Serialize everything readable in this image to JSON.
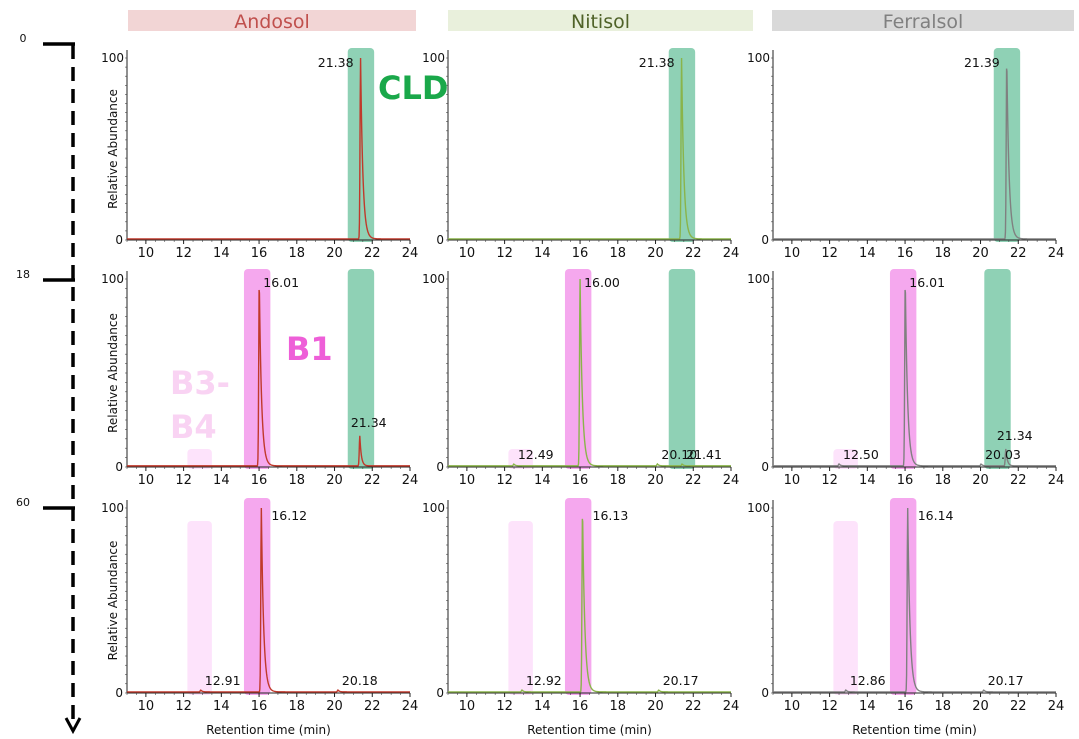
{
  "columns": [
    {
      "label": "Andosol",
      "header_color": "#f2d5d5",
      "text_color": "#c0504d",
      "trace_color": "#c0392b"
    },
    {
      "label": "Nitisol",
      "header_color": "#e9f0dc",
      "text_color": "#4f6228",
      "trace_color": "#8ab44a"
    },
    {
      "label": "Ferralsol",
      "header_color": "#d9d9d9",
      "text_color": "#808080",
      "trace_color": "#808080"
    }
  ],
  "timeline": {
    "labels": [
      "0",
      "18",
      "60"
    ]
  },
  "compound_labels": {
    "cld": "CLD",
    "b1": "B1",
    "b3": "B3-",
    "b4": "B4"
  },
  "colors": {
    "cld": "#8fd1b5",
    "b1": "#f5a8ee",
    "b34": "#fde3fb",
    "cld_text": "#1aa84a",
    "b1_text": "#ee5fd8",
    "b34_text": "#f9d3f3"
  },
  "axis_common": {
    "ylabel": "Relative Abundance",
    "xlabel": "Retention time (min)",
    "ytick_top": "100",
    "ytick_bottom": "0"
  },
  "chart_data": [
    {
      "type": "line",
      "row": 0,
      "col": 0,
      "xlim": [
        9,
        24
      ],
      "ylim": [
        0,
        100
      ],
      "xticks": [
        10,
        12,
        14,
        16,
        18,
        20,
        22,
        24
      ],
      "bands": [
        {
          "kind": "cld",
          "x": [
            20.7,
            22.1
          ]
        }
      ],
      "peaks": [
        {
          "rt": 21.38,
          "height": 100,
          "label": "21.38"
        }
      ],
      "show_ylabel": true,
      "show_xlabel": false
    },
    {
      "type": "line",
      "row": 0,
      "col": 1,
      "xlim": [
        9,
        24
      ],
      "ylim": [
        0,
        100
      ],
      "xticks": [
        10,
        12,
        14,
        16,
        18,
        20,
        22,
        24
      ],
      "bands": [
        {
          "kind": "cld",
          "x": [
            20.7,
            22.1
          ]
        }
      ],
      "peaks": [
        {
          "rt": 21.38,
          "height": 100,
          "label": "21.38"
        }
      ],
      "show_ylabel": false,
      "show_xlabel": false
    },
    {
      "type": "line",
      "row": 0,
      "col": 2,
      "xlim": [
        9,
        24
      ],
      "ylim": [
        0,
        100
      ],
      "xticks": [
        10,
        12,
        14,
        16,
        18,
        20,
        22,
        24
      ],
      "bands": [
        {
          "kind": "cld",
          "x": [
            20.7,
            22.1
          ]
        }
      ],
      "peaks": [
        {
          "rt": 21.39,
          "height": 100,
          "label": "21.39"
        }
      ],
      "show_ylabel": false,
      "show_xlabel": false
    },
    {
      "type": "line",
      "row": 1,
      "col": 0,
      "xlim": [
        9,
        24
      ],
      "ylim": [
        0,
        100
      ],
      "xticks": [
        10,
        12,
        14,
        16,
        18,
        20,
        22,
        24
      ],
      "bands": [
        {
          "kind": "b34",
          "x": [
            12.2,
            13.5
          ]
        },
        {
          "kind": "b1",
          "x": [
            15.2,
            16.6
          ]
        },
        {
          "kind": "cld",
          "x": [
            20.7,
            22.1
          ]
        }
      ],
      "peaks": [
        {
          "rt": 16.01,
          "height": 100,
          "label": "16.01"
        },
        {
          "rt": 21.34,
          "height": 16,
          "label": "21.34"
        }
      ],
      "show_ylabel": true,
      "show_xlabel": false
    },
    {
      "type": "line",
      "row": 1,
      "col": 1,
      "xlim": [
        9,
        24
      ],
      "ylim": [
        0,
        100
      ],
      "xticks": [
        10,
        12,
        14,
        16,
        18,
        20,
        22,
        24
      ],
      "bands": [
        {
          "kind": "b34",
          "x": [
            12.2,
            13.5
          ]
        },
        {
          "kind": "b1",
          "x": [
            15.2,
            16.6
          ]
        },
        {
          "kind": "cld",
          "x": [
            20.7,
            22.1
          ]
        }
      ],
      "peaks": [
        {
          "rt": 12.49,
          "height": 1,
          "label": "12.49"
        },
        {
          "rt": 16.0,
          "height": 100,
          "label": "16.00"
        },
        {
          "rt": 20.1,
          "height": 1,
          "label": "20.10"
        },
        {
          "rt": 21.41,
          "height": 1,
          "label": "21.41"
        }
      ],
      "show_ylabel": false,
      "show_xlabel": false
    },
    {
      "type": "line",
      "row": 1,
      "col": 2,
      "xlim": [
        9,
        24
      ],
      "ylim": [
        0,
        100
      ],
      "xticks": [
        10,
        12,
        14,
        16,
        18,
        20,
        22,
        24
      ],
      "bands": [
        {
          "kind": "b34",
          "x": [
            12.2,
            13.5
          ]
        },
        {
          "kind": "b1",
          "x": [
            15.2,
            16.6
          ]
        },
        {
          "kind": "cld",
          "x": [
            20.2,
            21.6
          ]
        }
      ],
      "peaks": [
        {
          "rt": 12.5,
          "height": 1,
          "label": "12.50"
        },
        {
          "rt": 16.01,
          "height": 100,
          "label": "16.01"
        },
        {
          "rt": 20.03,
          "height": 1,
          "label": "20.03"
        },
        {
          "rt": 21.34,
          "height": 9,
          "label": "21.34"
        }
      ],
      "show_ylabel": false,
      "show_xlabel": false
    },
    {
      "type": "line",
      "row": 2,
      "col": 0,
      "xlim": [
        9,
        24
      ],
      "ylim": [
        0,
        100
      ],
      "xticks": [
        10,
        12,
        14,
        16,
        18,
        20,
        22,
        24
      ],
      "bands": [
        {
          "kind": "b34",
          "x": [
            12.2,
            13.5
          ]
        },
        {
          "kind": "b1",
          "x": [
            15.2,
            16.6
          ]
        }
      ],
      "peaks": [
        {
          "rt": 12.91,
          "height": 1,
          "label": "12.91"
        },
        {
          "rt": 16.12,
          "height": 100,
          "label": "16.12"
        },
        {
          "rt": 20.18,
          "height": 1,
          "label": "20.18"
        }
      ],
      "show_ylabel": true,
      "show_xlabel": true
    },
    {
      "type": "line",
      "row": 2,
      "col": 1,
      "xlim": [
        9,
        24
      ],
      "ylim": [
        0,
        100
      ],
      "xticks": [
        10,
        12,
        14,
        16,
        18,
        20,
        22,
        24
      ],
      "bands": [
        {
          "kind": "b34",
          "x": [
            12.2,
            13.5
          ]
        },
        {
          "kind": "b1",
          "x": [
            15.2,
            16.6
          ]
        }
      ],
      "peaks": [
        {
          "rt": 12.92,
          "height": 1,
          "label": "12.92"
        },
        {
          "rt": 16.13,
          "height": 100,
          "label": "16.13"
        },
        {
          "rt": 20.17,
          "height": 1,
          "label": "20.17"
        }
      ],
      "show_ylabel": false,
      "show_xlabel": true
    },
    {
      "type": "line",
      "row": 2,
      "col": 2,
      "xlim": [
        9,
        24
      ],
      "ylim": [
        0,
        100
      ],
      "xticks": [
        10,
        12,
        14,
        16,
        18,
        20,
        22,
        24
      ],
      "bands": [
        {
          "kind": "b34",
          "x": [
            12.2,
            13.5
          ]
        },
        {
          "kind": "b1",
          "x": [
            15.2,
            16.6
          ]
        }
      ],
      "peaks": [
        {
          "rt": 12.86,
          "height": 1,
          "label": "12.86"
        },
        {
          "rt": 16.14,
          "height": 100,
          "label": "16.14"
        },
        {
          "rt": 20.17,
          "height": 1,
          "label": "20.17"
        }
      ],
      "show_ylabel": false,
      "show_xlabel": true
    }
  ]
}
